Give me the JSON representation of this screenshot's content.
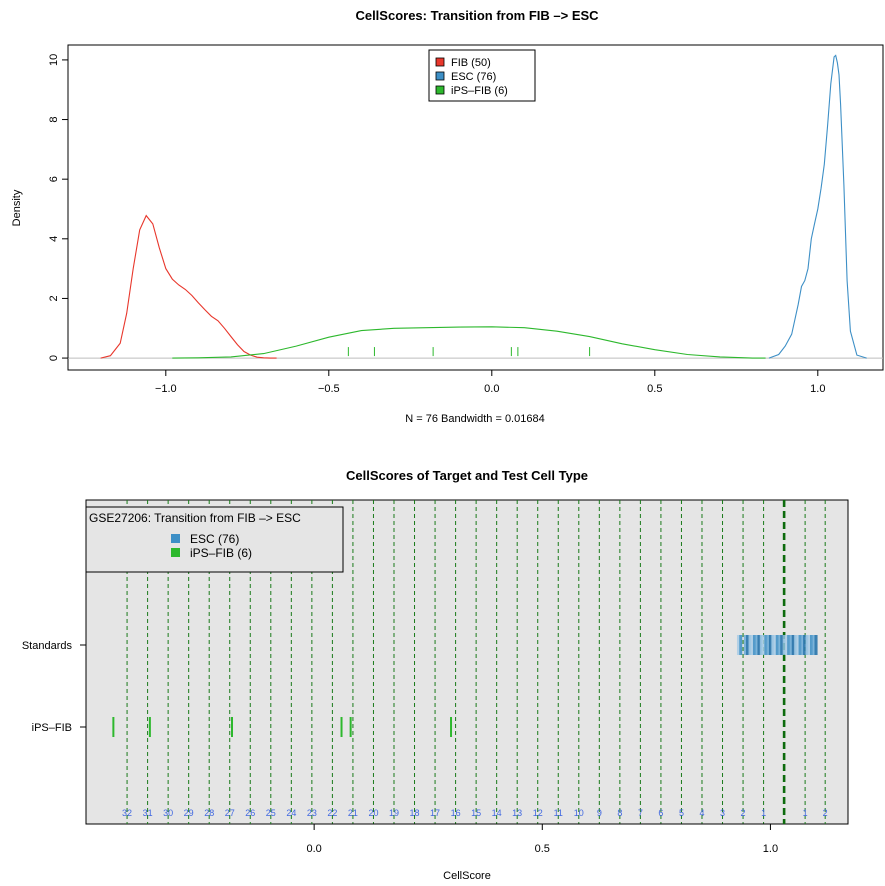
{
  "chart_data": [
    {
      "type": "line",
      "title": "CellScores: Transition from FIB –> ESC",
      "xlabel": "N = 76   Bandwidth = 0.01684",
      "ylabel": "Density",
      "xlim": [
        -1.3,
        1.2
      ],
      "ylim": [
        -0.4,
        10.5
      ],
      "x_ticks": [
        -1.0,
        -0.5,
        0.0,
        0.5,
        1.0
      ],
      "x_tick_labels": [
        "−1.0",
        "−0.5",
        "0.0",
        "0.5",
        "1.0"
      ],
      "y_ticks": [
        0,
        2,
        4,
        6,
        8,
        10
      ],
      "y_tick_labels": [
        "0",
        "2",
        "4",
        "6",
        "8",
        "10"
      ],
      "legend": {
        "position": "top-center",
        "entries": [
          {
            "label": "FIB (50)",
            "color": "#e8372c"
          },
          {
            "label": "ESC (76)",
            "color": "#3d8fc6"
          },
          {
            "label": "iPS–FIB (6)",
            "color": "#2db82d"
          }
        ]
      },
      "series": [
        {
          "name": "FIB (50)",
          "color": "#e8372c",
          "x": [
            -1.2,
            -1.17,
            -1.14,
            -1.12,
            -1.1,
            -1.08,
            -1.06,
            -1.04,
            -1.02,
            -1.0,
            -0.98,
            -0.96,
            -0.94,
            -0.92,
            -0.9,
            -0.88,
            -0.86,
            -0.84,
            -0.82,
            -0.8,
            -0.78,
            -0.76,
            -0.74,
            -0.72,
            -0.7,
            -0.68,
            -0.66
          ],
          "y": [
            0.0,
            0.08,
            0.5,
            1.5,
            3.0,
            4.3,
            4.78,
            4.5,
            3.7,
            3.0,
            2.65,
            2.45,
            2.3,
            2.1,
            1.85,
            1.62,
            1.4,
            1.25,
            1.0,
            0.72,
            0.45,
            0.22,
            0.1,
            0.03,
            0.01,
            0.0,
            0.0
          ]
        },
        {
          "name": "ESC (76)",
          "color": "#3d8fc6",
          "x": [
            0.85,
            0.88,
            0.9,
            0.92,
            0.94,
            0.95,
            0.96,
            0.97,
            0.98,
            0.99,
            1.0,
            1.01,
            1.02,
            1.03,
            1.04,
            1.05,
            1.055,
            1.06,
            1.065,
            1.07,
            1.08,
            1.09,
            1.1,
            1.12,
            1.15
          ],
          "y": [
            0.0,
            0.12,
            0.4,
            0.8,
            1.8,
            2.4,
            2.6,
            3.0,
            4.0,
            4.5,
            5.0,
            5.7,
            6.5,
            7.8,
            9.2,
            10.1,
            10.15,
            9.9,
            9.5,
            8.5,
            5.8,
            2.6,
            0.9,
            0.1,
            0.0
          ]
        },
        {
          "name": "iPS–FIB (6)",
          "color": "#2db82d",
          "x": [
            -0.98,
            -0.9,
            -0.8,
            -0.7,
            -0.6,
            -0.5,
            -0.4,
            -0.3,
            -0.2,
            -0.1,
            0.0,
            0.1,
            0.2,
            0.3,
            0.4,
            0.5,
            0.6,
            0.7,
            0.8,
            0.84
          ],
          "y": [
            0.0,
            0.01,
            0.04,
            0.15,
            0.4,
            0.7,
            0.92,
            1.0,
            1.02,
            1.04,
            1.05,
            1.02,
            0.9,
            0.72,
            0.48,
            0.28,
            0.12,
            0.04,
            0.0,
            0.0
          ]
        }
      ],
      "rug": {
        "color": "#2db82d",
        "x": [
          -0.44,
          -0.36,
          -0.18,
          0.06,
          0.08,
          0.3
        ]
      },
      "baseline_color": "#bebebe"
    },
    {
      "type": "scatter",
      "title": "CellScores of Target and Test Cell Type",
      "xlabel": "CellScore",
      "xlim": [
        -0.5,
        1.17
      ],
      "x_ticks": [
        0.0,
        0.5,
        1.0
      ],
      "x_tick_labels": [
        "0.0",
        "0.5",
        "1.0"
      ],
      "y_categories": [
        "Standards",
        "iPS–FIB"
      ],
      "background": "#e5e5e5",
      "legend": {
        "title": "GSE27206: Transition from FIB –> ESC",
        "position": "top-left",
        "entries": [
          {
            "label": "ESC (76)",
            "color": "#3d8fc6"
          },
          {
            "label": "iPS–FIB (6)",
            "color": "#2db82d"
          }
        ]
      },
      "reference_lines": {
        "color": "#1a7a1a",
        "numbers_color": "#4169e1",
        "lines": [
          {
            "x": -0.41,
            "label": "32"
          },
          {
            "x": -0.365,
            "label": "31"
          },
          {
            "x": -0.32,
            "label": "30"
          },
          {
            "x": -0.275,
            "label": "29"
          },
          {
            "x": -0.23,
            "label": "28"
          },
          {
            "x": -0.185,
            "label": "27"
          },
          {
            "x": -0.14,
            "label": "26"
          },
          {
            "x": -0.095,
            "label": "25"
          },
          {
            "x": -0.05,
            "label": "24"
          },
          {
            "x": -0.005,
            "label": "23"
          },
          {
            "x": 0.04,
            "label": "22"
          },
          {
            "x": 0.085,
            "label": "21"
          },
          {
            "x": 0.13,
            "label": "20"
          },
          {
            "x": 0.175,
            "label": "19"
          },
          {
            "x": 0.22,
            "label": "18"
          },
          {
            "x": 0.265,
            "label": "17"
          },
          {
            "x": 0.31,
            "label": "16"
          },
          {
            "x": 0.355,
            "label": "15"
          },
          {
            "x": 0.4,
            "label": "14"
          },
          {
            "x": 0.445,
            "label": "13"
          },
          {
            "x": 0.49,
            "label": "12"
          },
          {
            "x": 0.535,
            "label": "11"
          },
          {
            "x": 0.58,
            "label": "10"
          },
          {
            "x": 0.625,
            "label": "9"
          },
          {
            "x": 0.67,
            "label": "8"
          },
          {
            "x": 0.715,
            "label": "7"
          },
          {
            "x": 0.76,
            "label": "6"
          },
          {
            "x": 0.805,
            "label": "5"
          },
          {
            "x": 0.85,
            "label": "4"
          },
          {
            "x": 0.895,
            "label": "3"
          },
          {
            "x": 0.94,
            "label": "2"
          },
          {
            "x": 0.985,
            "label": "1"
          },
          {
            "x": 1.076,
            "label": "1"
          },
          {
            "x": 1.12,
            "label": "2"
          }
        ],
        "target": {
          "x": 1.03
        }
      },
      "series": [
        {
          "name": "ESC (76)",
          "category": "Standards",
          "color": "#3d8fc6",
          "x": [
            0.93,
            0.935,
            0.945,
            0.95,
            0.955,
            0.96,
            0.965,
            0.97,
            0.975,
            0.98,
            0.985,
            0.99,
            0.995,
            1.0,
            1.005,
            1.01,
            1.015,
            1.02,
            1.025,
            1.03,
            1.035,
            1.04,
            1.045,
            1.05,
            1.055,
            1.06,
            1.065,
            1.07,
            1.075,
            1.08,
            1.085,
            1.09,
            1.095,
            1.1
          ]
        },
        {
          "name": "iPS–FIB (6)",
          "category": "iPS–FIB",
          "color": "#2db82d",
          "x": [
            -0.44,
            -0.36,
            -0.18,
            0.06,
            0.08,
            0.3
          ]
        }
      ]
    }
  ]
}
